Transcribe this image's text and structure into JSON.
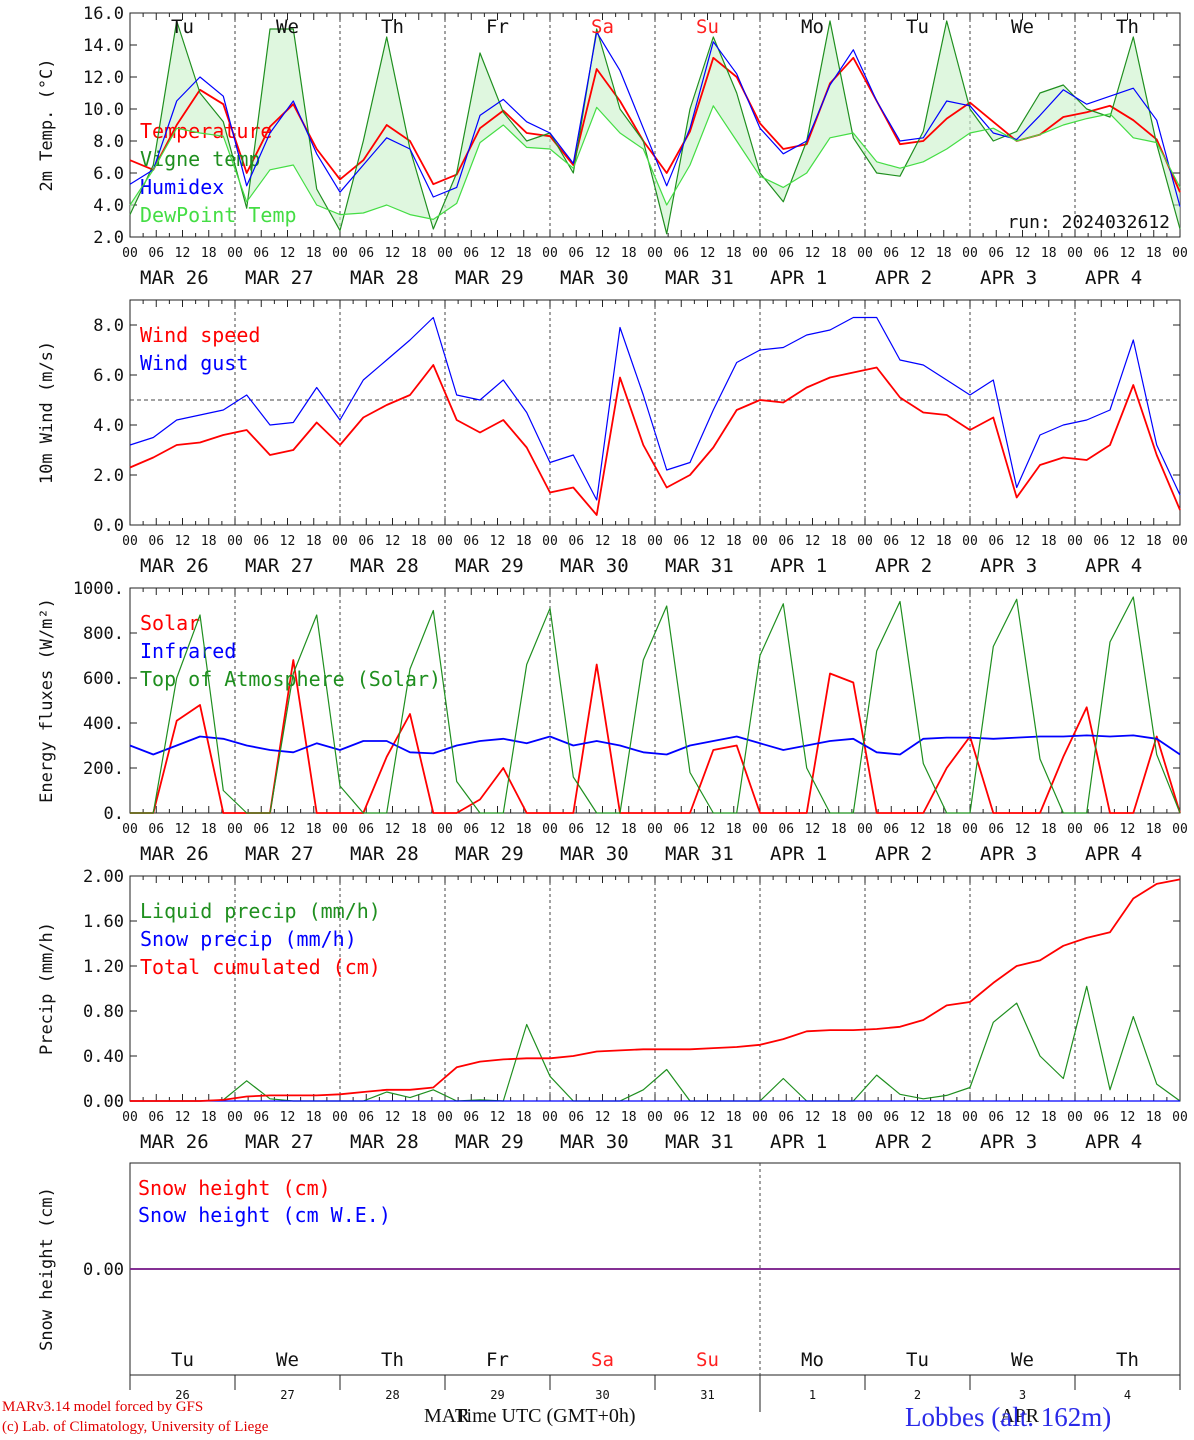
{
  "days_short": [
    "Tu",
    "We",
    "Th",
    "Fr",
    "Sa",
    "Su",
    "Mo",
    "Tu",
    "We",
    "Th"
  ],
  "weekend_days": [
    4,
    5
  ],
  "date_labels": [
    "MAR 26",
    "MAR 27",
    "MAR 28",
    "MAR 29",
    "MAR 30",
    "MAR 31",
    "APR  1",
    "APR  2",
    "APR  3",
    "APR  4"
  ],
  "hour_ticks": [
    "00",
    "06",
    "12",
    "18"
  ],
  "run_label": "run: 2024032612",
  "footer": {
    "model": "MARv3.14 model forced by GFS",
    "lab": "(c) Lab. of Climatology, University of Liege",
    "time_label": "Time UTC (GMT+0h)",
    "mar_label": "MAR",
    "apr_label": "APR",
    "station": "Lobbes (alt. 162m)",
    "day_numbers": [
      "26",
      "27",
      "28",
      "29",
      "30",
      "31",
      "1",
      "2",
      "3",
      "4"
    ]
  },
  "colors": {
    "red": "#ff0000",
    "green": "#1f8f1f",
    "blue": "#0000ff",
    "lightgreen": "#44dd44",
    "weekend": "#ff2020",
    "purple": "#7030a0"
  },
  "chart_data": [
    {
      "type": "line",
      "ylabel": "2m Temp. (°C)",
      "ylim": [
        2,
        16
      ],
      "yticks": [
        "2.0",
        "4.0",
        "6.0",
        "8.0",
        "10.0",
        "12.0",
        "14.0",
        "16.0"
      ],
      "x_step_hours": 6,
      "fill_between": [
        "Vigne temp",
        "DewPoint Temp"
      ],
      "series": [
        {
          "name": "Temperature",
          "color": "red",
          "values": [
            6.8,
            6.2,
            9,
            11.2,
            10.3,
            6,
            8.9,
            10.3,
            7.5,
            5.6,
            6.8,
            9,
            8,
            5.3,
            5.9,
            8.8,
            9.9,
            8.5,
            8.3,
            6.5,
            12.5,
            10.5,
            8,
            6,
            8.6,
            13.2,
            12,
            9.1,
            7.5,
            7.8,
            11.6,
            13.2,
            10.5,
            7.8,
            8,
            9.4,
            10.4,
            9.2,
            8,
            8.4,
            9.5,
            9.8,
            10.2,
            9.3,
            8.1,
            4.8
          ]
        },
        {
          "name": "Vigne temp",
          "color": "green",
          "values": [
            3.4,
            6.5,
            15.5,
            11,
            9.2,
            3.8,
            15,
            15,
            5,
            2.4,
            8,
            14.5,
            7.5,
            2.5,
            6,
            13.5,
            9.8,
            8,
            8.5,
            6,
            15,
            10,
            8,
            2.2,
            10,
            14.5,
            11,
            6,
            4.2,
            8,
            15.5,
            8.2,
            6,
            5.8,
            8.6,
            15.5,
            10,
            8,
            8.6,
            11,
            11.5,
            10,
            9.5,
            14.5,
            7.8,
            2.5
          ]
        },
        {
          "name": "Humidex",
          "color": "blue",
          "values": [
            5.3,
            6.2,
            10.5,
            12,
            10.8,
            5.2,
            8.5,
            10.5,
            7.2,
            4.8,
            6.5,
            8.2,
            7.5,
            4.5,
            5.1,
            9.6,
            10.6,
            9.2,
            8.5,
            6.6,
            14.8,
            12.4,
            8.8,
            5.2,
            8.8,
            14.2,
            12.2,
            8.8,
            7.2,
            8,
            11.5,
            13.7,
            10.5,
            8,
            8.2,
            10.5,
            10.2,
            8.5,
            8.1,
            9.6,
            11.2,
            10.3,
            10.8,
            11.3,
            9.3,
            3.9
          ]
        },
        {
          "name": "DewPoint Temp",
          "color": "lightgreen",
          "values": [
            4,
            6.2,
            8.8,
            8.5,
            8.3,
            4.2,
            6.2,
            6.5,
            4,
            3.4,
            3.5,
            4,
            3.4,
            3.1,
            4.1,
            7.9,
            9,
            7.6,
            7.5,
            6.3,
            10.1,
            8.5,
            7.5,
            4,
            6.5,
            10.2,
            8,
            5.8,
            5.1,
            6,
            8.2,
            8.5,
            6.7,
            6.3,
            6.7,
            7.5,
            8.5,
            8.8,
            8,
            8.4,
            9,
            9.4,
            9.7,
            8.2,
            7.9,
            5.1
          ]
        }
      ]
    },
    {
      "type": "line",
      "ylabel": "10m Wind (m/s)",
      "ylim": [
        0,
        9
      ],
      "yticks": [
        "0.0",
        "2.0",
        "4.0",
        "6.0",
        "8.0"
      ],
      "reference_line": 5.0,
      "x_step_hours": 6,
      "series": [
        {
          "name": "Wind speed",
          "color": "red",
          "values": [
            2.3,
            2.7,
            3.2,
            3.3,
            3.6,
            3.8,
            2.8,
            3,
            4.1,
            3.2,
            4.3,
            4.8,
            5.2,
            6.4,
            4.2,
            3.7,
            4.2,
            3.1,
            1.3,
            1.5,
            0.4,
            5.9,
            3.2,
            1.5,
            2,
            3.1,
            4.6,
            5,
            4.9,
            5.5,
            5.9,
            6.1,
            6.3,
            5.1,
            4.5,
            4.4,
            3.8,
            4.3,
            1.1,
            2.4,
            2.7,
            2.6,
            3.2,
            5.6,
            2.8,
            0.6
          ]
        },
        {
          "name": "Wind gust",
          "color": "blue",
          "values": [
            3.2,
            3.5,
            4.2,
            4.4,
            4.6,
            5.2,
            4,
            4.1,
            5.5,
            4.2,
            5.8,
            6.6,
            7.4,
            8.3,
            5.2,
            5,
            5.8,
            4.5,
            2.5,
            2.8,
            1,
            7.9,
            5.2,
            2.2,
            2.5,
            4.6,
            6.5,
            7,
            7.1,
            7.6,
            7.8,
            8.3,
            8.3,
            6.6,
            6.4,
            5.8,
            5.2,
            5.8,
            1.5,
            3.6,
            4,
            4.2,
            4.6,
            7.4,
            3.2,
            1.2
          ]
        }
      ]
    },
    {
      "type": "line",
      "ylabel": "Energy fluxes (W/m²)",
      "ylim": [
        0,
        1000
      ],
      "yticks": [
        "0.",
        "200.",
        "400.",
        "600.",
        "800.",
        "1000."
      ],
      "x_step_hours": 6,
      "series": [
        {
          "name": "Solar",
          "color": "red",
          "values": [
            0,
            0,
            410,
            480,
            0,
            0,
            0,
            680,
            0,
            0,
            0,
            250,
            440,
            0,
            0,
            60,
            200,
            0,
            0,
            0,
            660,
            0,
            0,
            0,
            0,
            280,
            300,
            0,
            0,
            0,
            620,
            580,
            0,
            0,
            0,
            200,
            340,
            0,
            0,
            0,
            250,
            470,
            0,
            0,
            340,
            0
          ]
        },
        {
          "name": "Infrared",
          "color": "blue",
          "values": [
            300,
            260,
            300,
            340,
            330,
            300,
            280,
            270,
            310,
            280,
            320,
            320,
            270,
            265,
            300,
            320,
            330,
            310,
            340,
            300,
            320,
            300,
            270,
            260,
            300,
            320,
            340,
            310,
            280,
            300,
            320,
            330,
            270,
            260,
            330,
            335,
            335,
            330,
            335,
            340,
            340,
            345,
            340,
            345,
            330,
            260
          ]
        },
        {
          "name": "Top of Atmosphere (Solar)",
          "color": "green",
          "values": [
            0,
            0,
            600,
            880,
            100,
            0,
            0,
            620,
            880,
            120,
            0,
            0,
            640,
            900,
            140,
            0,
            0,
            660,
            910,
            160,
            0,
            0,
            680,
            920,
            180,
            0,
            0,
            700,
            930,
            200,
            0,
            0,
            720,
            940,
            220,
            0,
            0,
            740,
            950,
            240,
            0,
            0,
            760,
            960,
            260,
            0
          ]
        }
      ]
    },
    {
      "type": "line",
      "ylabel": "Precip (mm/h)",
      "ylim": [
        0,
        2
      ],
      "yticks": [
        "0.00",
        "0.40",
        "0.80",
        "1.20",
        "1.60",
        "2.00"
      ],
      "x_step_hours": 6,
      "series": [
        {
          "name": "Liquid precip (mm/h)",
          "color": "green",
          "values": [
            0,
            0,
            0,
            0,
            0.01,
            0.18,
            0.02,
            0,
            0,
            0,
            0,
            0.08,
            0.03,
            0.1,
            0,
            0.01,
            0,
            0.68,
            0.22,
            0,
            0,
            0,
            0.1,
            0.28,
            0,
            0,
            0,
            0,
            0.2,
            0,
            0,
            0,
            0.23,
            0.06,
            0.02,
            0.05,
            0.12,
            0.7,
            0.87,
            0.4,
            0.2,
            1.02,
            0.1,
            0.75,
            0.15,
            0
          ]
        },
        {
          "name": "Snow precip (mm/h)",
          "color": "blue",
          "values": [
            0,
            0,
            0,
            0,
            0,
            0,
            0,
            0,
            0,
            0,
            0,
            0,
            0,
            0,
            0,
            0,
            0,
            0,
            0,
            0,
            0,
            0,
            0,
            0,
            0,
            0,
            0,
            0,
            0,
            0,
            0,
            0,
            0,
            0,
            0,
            0,
            0,
            0,
            0,
            0,
            0,
            0,
            0,
            0,
            0,
            0
          ]
        },
        {
          "name": "Total cumulated (cm)",
          "color": "red",
          "values": [
            0,
            0,
            0,
            0,
            0.01,
            0.04,
            0.05,
            0.05,
            0.05,
            0.06,
            0.08,
            0.1,
            0.1,
            0.12,
            0.3,
            0.35,
            0.37,
            0.38,
            0.38,
            0.4,
            0.44,
            0.45,
            0.46,
            0.46,
            0.46,
            0.47,
            0.48,
            0.5,
            0.55,
            0.62,
            0.63,
            0.63,
            0.64,
            0.66,
            0.72,
            0.85,
            0.88,
            1.05,
            1.2,
            1.25,
            1.38,
            1.45,
            1.5,
            1.8,
            1.93,
            1.97
          ]
        }
      ]
    },
    {
      "type": "line",
      "ylabel": "Snow height (cm)",
      "ylim": [
        -1,
        1
      ],
      "yticks": [
        "0.00"
      ],
      "x_step_hours": 6,
      "series": [
        {
          "name": "Snow height (cm)",
          "color": "red",
          "values": [
            0,
            0
          ]
        },
        {
          "name": "Snow height (cm W.E.)",
          "color": "blue",
          "values": [
            0,
            0
          ]
        }
      ]
    }
  ]
}
